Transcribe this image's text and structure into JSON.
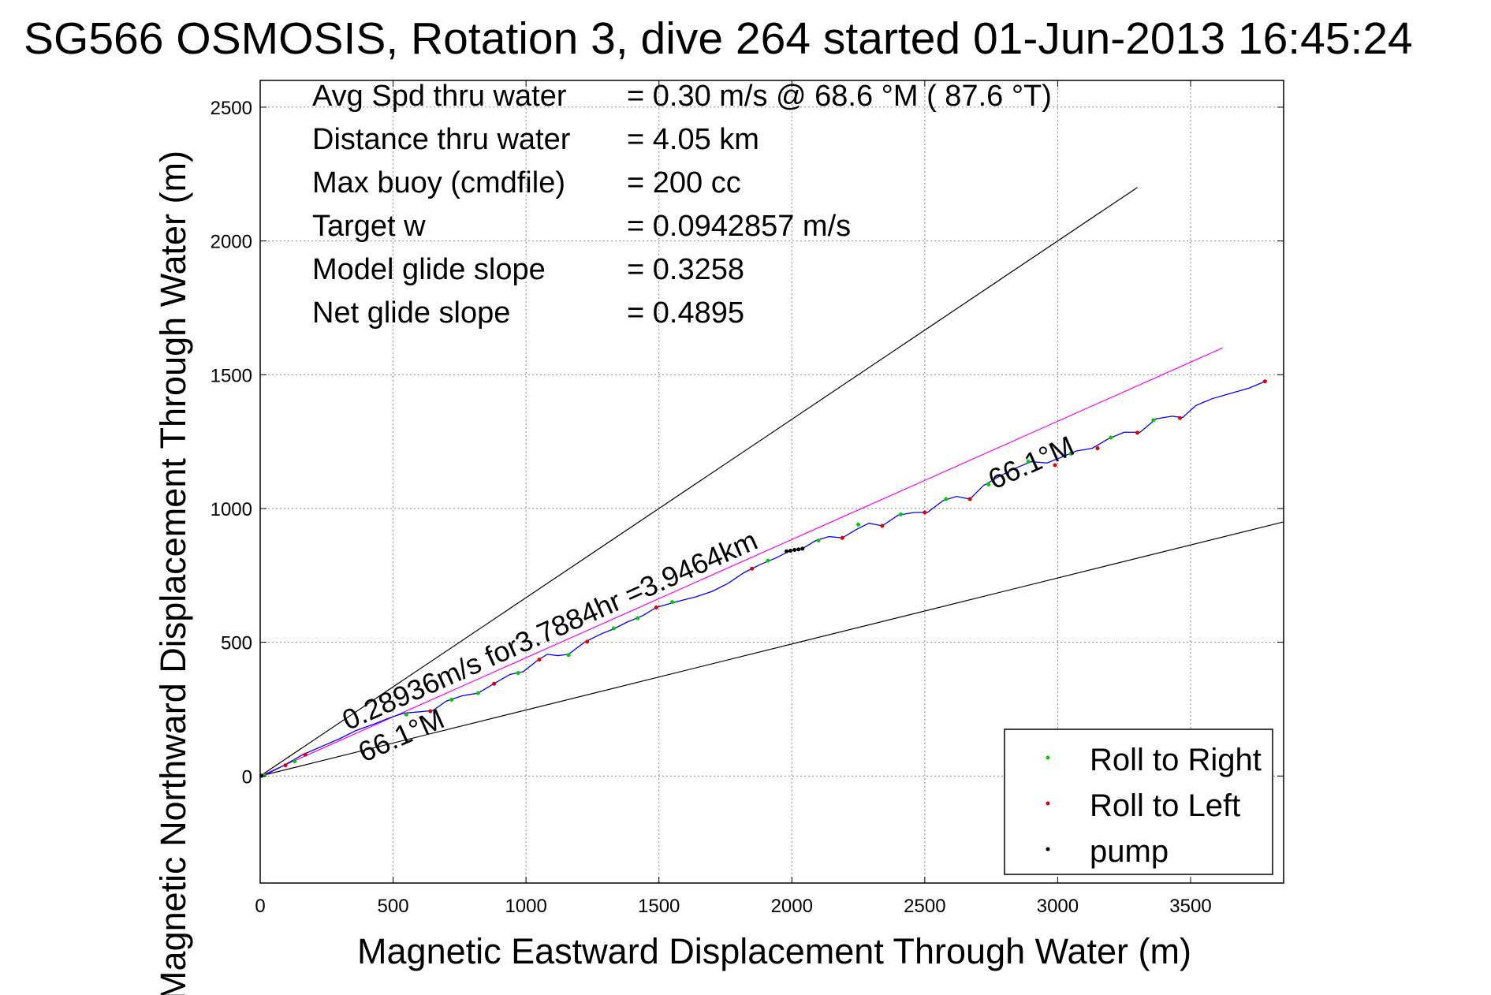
{
  "chart_data": {
    "type": "line",
    "title": "SG566 OSMOSIS, Rotation 3, dive 264 started 01-Jun-2013 16:45:24",
    "xlabel": "Magnetic Eastward Displacement Through Water (m)",
    "ylabel": "Magnetic Northward Displacement Through Water (m)",
    "xlim": [
      0,
      3850
    ],
    "ylim": [
      -400,
      2600
    ],
    "xticks": [
      "0",
      "500",
      "1000",
      "1500",
      "2000",
      "2500",
      "3000",
      "3500"
    ],
    "yticks": [
      "0",
      "500",
      "1000",
      "1500",
      "2000",
      "2500"
    ],
    "grid": true,
    "legend_position": "bottom-right",
    "info": [
      {
        "label": "Avg Spd thru water",
        "value": "=  0.30 m/s @  68.6 °M ( 87.6 °T)"
      },
      {
        "label": "Distance thru water",
        "value": "=  4.05 km"
      },
      {
        "label": "Max buoy (cmdfile)",
        "value": "= 200 cc"
      },
      {
        "label": "Target w",
        "value": "= 0.0942857 m/s"
      },
      {
        "label": "Model glide slope",
        "value": "= 0.3258"
      },
      {
        "label": "Net glide slope",
        "value": "= 0.4895"
      }
    ],
    "annotations": [
      {
        "text": "0.28936m/s for3.7884hr =3.9464km",
        "x": 330,
        "y": 170
      },
      {
        "text": "66.1°M",
        "x": 390,
        "y": 50
      },
      {
        "text": "66.1°M",
        "x": 2760,
        "y": 1070
      }
    ],
    "reference_lines": [
      {
        "name": "upper-bound",
        "color": "#000000",
        "points": [
          [
            0,
            0
          ],
          [
            3300,
            2200
          ]
        ]
      },
      {
        "name": "lower-bound",
        "color": "#000000",
        "points": [
          [
            0,
            0
          ],
          [
            3850,
            950
          ]
        ]
      },
      {
        "name": "heading-line",
        "color": "#ff00ff",
        "points": [
          [
            0,
            0
          ],
          [
            3620,
            1600
          ]
        ]
      }
    ],
    "series": [
      {
        "name": "track",
        "color": "#0000ff",
        "points": [
          [
            0,
            0
          ],
          [
            30,
            10
          ],
          [
            90,
            40
          ],
          [
            160,
            80
          ],
          [
            230,
            110
          ],
          [
            300,
            140
          ],
          [
            360,
            170
          ],
          [
            430,
            195
          ],
          [
            480,
            215
          ],
          [
            540,
            235
          ],
          [
            600,
            240
          ],
          [
            650,
            245
          ],
          [
            700,
            280
          ],
          [
            760,
            300
          ],
          [
            820,
            310
          ],
          [
            870,
            340
          ],
          [
            940,
            380
          ],
          [
            990,
            390
          ],
          [
            1040,
            430
          ],
          [
            1080,
            455
          ],
          [
            1120,
            450
          ],
          [
            1160,
            455
          ],
          [
            1220,
            500
          ],
          [
            1280,
            530
          ],
          [
            1330,
            550
          ],
          [
            1380,
            575
          ],
          [
            1440,
            600
          ],
          [
            1490,
            630
          ],
          [
            1560,
            650
          ],
          [
            1640,
            670
          ],
          [
            1700,
            690
          ],
          [
            1760,
            720
          ],
          [
            1820,
            760
          ],
          [
            1880,
            790
          ],
          [
            1940,
            815
          ],
          [
            1990,
            840
          ],
          [
            2040,
            850
          ],
          [
            2090,
            880
          ],
          [
            2140,
            895
          ],
          [
            2190,
            890
          ],
          [
            2240,
            920
          ],
          [
            2290,
            945
          ],
          [
            2340,
            935
          ],
          [
            2400,
            975
          ],
          [
            2460,
            985
          ],
          [
            2510,
            985
          ],
          [
            2570,
            1030
          ],
          [
            2620,
            1045
          ],
          [
            2670,
            1035
          ],
          [
            2720,
            1085
          ],
          [
            2780,
            1120
          ],
          [
            2840,
            1150
          ],
          [
            2900,
            1175
          ],
          [
            2960,
            1170
          ],
          [
            3010,
            1190
          ],
          [
            3070,
            1215
          ],
          [
            3130,
            1225
          ],
          [
            3190,
            1260
          ],
          [
            3250,
            1285
          ],
          [
            3310,
            1285
          ],
          [
            3370,
            1335
          ],
          [
            3430,
            1345
          ],
          [
            3470,
            1340
          ],
          [
            3520,
            1385
          ],
          [
            3580,
            1410
          ],
          [
            3650,
            1430
          ],
          [
            3720,
            1450
          ],
          [
            3780,
            1475
          ]
        ]
      },
      {
        "name": "Roll to Right",
        "color": "#00cc00",
        "points": [
          [
            15,
            3
          ],
          [
            130,
            55
          ],
          [
            550,
            230
          ],
          [
            720,
            285
          ],
          [
            820,
            310
          ],
          [
            970,
            385
          ],
          [
            1160,
            452
          ],
          [
            1330,
            552
          ],
          [
            1420,
            590
          ],
          [
            1550,
            650
          ],
          [
            1910,
            805
          ],
          [
            2100,
            880
          ],
          [
            2250,
            940
          ],
          [
            2410,
            978
          ],
          [
            2580,
            1035
          ],
          [
            2740,
            1090
          ],
          [
            2890,
            1175
          ],
          [
            3050,
            1205
          ],
          [
            3200,
            1265
          ],
          [
            3360,
            1330
          ]
        ]
      },
      {
        "name": "Roll to Left",
        "color": "#dd0000",
        "points": [
          [
            95,
            40
          ],
          [
            170,
            80
          ],
          [
            640,
            242
          ],
          [
            880,
            345
          ],
          [
            1050,
            435
          ],
          [
            1230,
            502
          ],
          [
            1490,
            630
          ],
          [
            1850,
            775
          ],
          [
            2190,
            890
          ],
          [
            2340,
            935
          ],
          [
            2500,
            985
          ],
          [
            2670,
            1035
          ],
          [
            2990,
            1162
          ],
          [
            3150,
            1225
          ],
          [
            3300,
            1283
          ],
          [
            3460,
            1338
          ],
          [
            3780,
            1475
          ]
        ]
      },
      {
        "name": "pump",
        "color": "#000000",
        "points": [
          [
            5,
            1
          ],
          [
            1980,
            840
          ],
          [
            1995,
            842
          ],
          [
            2010,
            845
          ],
          [
            2025,
            847
          ],
          [
            2040,
            850
          ]
        ]
      }
    ],
    "legend": [
      "Roll to Right",
      "Roll to Left",
      "pump"
    ]
  }
}
